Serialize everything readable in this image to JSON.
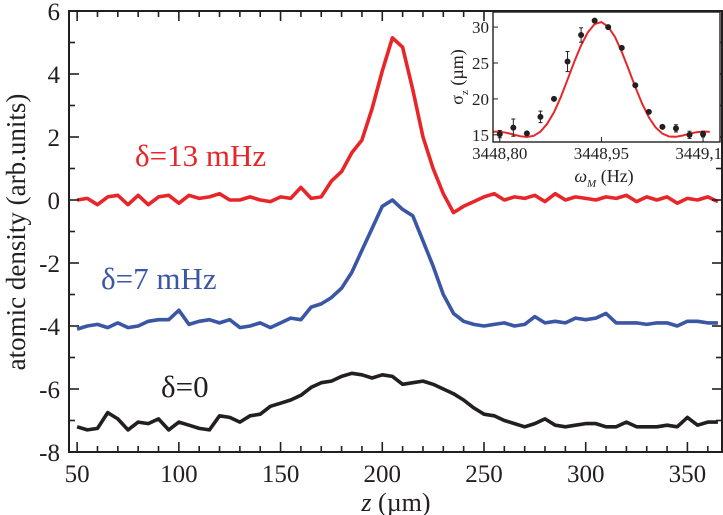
{
  "chart_data": [
    {
      "type": "line",
      "xlabel": "z (µm)",
      "xlabel_italic": "z",
      "xlabel_unit": "(µm)",
      "ylabel": "atomic density (arb.units)",
      "xlim": [
        46,
        367
      ],
      "ylim": [
        -8,
        6
      ],
      "xticks": [
        50,
        100,
        150,
        200,
        250,
        300,
        350
      ],
      "yticks": [
        -8,
        -6,
        -4,
        -2,
        0,
        2,
        4,
        6
      ],
      "grid": false,
      "x": [
        50,
        55,
        60,
        65,
        70,
        75,
        80,
        85,
        90,
        95,
        100,
        105,
        110,
        115,
        120,
        125,
        130,
        135,
        140,
        145,
        150,
        155,
        160,
        165,
        170,
        175,
        180,
        185,
        190,
        195,
        200,
        205,
        210,
        215,
        220,
        225,
        230,
        235,
        240,
        245,
        250,
        255,
        260,
        265,
        270,
        275,
        280,
        285,
        290,
        295,
        300,
        305,
        310,
        315,
        320,
        325,
        330,
        335,
        340,
        345,
        350,
        355,
        360,
        365
      ],
      "series": [
        {
          "name": "δ=13 mHz",
          "color": "#e8262a",
          "values": [
            0.0,
            0.05,
            -0.15,
            0.1,
            0.15,
            -0.15,
            0.15,
            -0.15,
            0.1,
            0.15,
            -0.1,
            0.15,
            0.05,
            0.1,
            0.2,
            0.0,
            0.0,
            0.1,
            0.0,
            -0.05,
            0.1,
            0.05,
            0.4,
            0.05,
            0.1,
            0.6,
            0.9,
            1.5,
            1.9,
            2.9,
            4.1,
            5.15,
            4.85,
            3.5,
            2.0,
            1.0,
            0.2,
            -0.4,
            -0.2,
            -0.05,
            0.1,
            0.2,
            0.0,
            0.1,
            0.05,
            0.15,
            -0.05,
            0.2,
            0.0,
            0.1,
            0.05,
            0.0,
            0.1,
            0.05,
            0.15,
            -0.05,
            0.1,
            0.0,
            0.1,
            -0.1,
            0.05,
            0.0,
            0.1,
            -0.05
          ]
        },
        {
          "name": "δ=7 mHz",
          "color": "#3a56a5",
          "values": [
            -4.1,
            -4.0,
            -3.95,
            -4.05,
            -3.9,
            -4.05,
            -4.0,
            -3.85,
            -3.8,
            -3.8,
            -3.5,
            -3.95,
            -3.85,
            -3.8,
            -3.9,
            -3.8,
            -4.05,
            -4.0,
            -3.9,
            -4.05,
            -3.9,
            -3.75,
            -3.8,
            -3.4,
            -3.3,
            -3.1,
            -2.8,
            -2.3,
            -1.6,
            -0.9,
            -0.2,
            0.0,
            -0.3,
            -0.5,
            -1.3,
            -2.1,
            -3.0,
            -3.6,
            -3.85,
            -3.95,
            -4.0,
            -3.95,
            -3.9,
            -4.0,
            -3.95,
            -3.7,
            -3.9,
            -3.85,
            -3.9,
            -3.75,
            -3.8,
            -3.75,
            -3.6,
            -3.9,
            -3.9,
            -3.9,
            -3.95,
            -3.9,
            -3.9,
            -4.0,
            -3.85,
            -3.85,
            -3.9,
            -3.9
          ]
        },
        {
          "name": "δ=0",
          "color": "#231f20",
          "values": [
            -7.2,
            -7.3,
            -7.25,
            -6.75,
            -6.95,
            -7.3,
            -7.05,
            -7.1,
            -6.95,
            -7.3,
            -7.05,
            -7.15,
            -7.25,
            -7.3,
            -6.85,
            -6.9,
            -7.05,
            -6.85,
            -6.8,
            -6.55,
            -6.45,
            -6.35,
            -6.2,
            -5.95,
            -5.8,
            -5.75,
            -5.6,
            -5.5,
            -5.55,
            -5.65,
            -5.55,
            -5.6,
            -5.85,
            -5.8,
            -5.75,
            -5.85,
            -6.0,
            -6.15,
            -6.35,
            -6.6,
            -6.8,
            -6.85,
            -7.0,
            -7.1,
            -7.2,
            -7.1,
            -6.95,
            -7.15,
            -7.2,
            -7.15,
            -7.1,
            -7.1,
            -7.2,
            -7.2,
            -7.05,
            -7.2,
            -7.2,
            -7.2,
            -7.15,
            -7.2,
            -6.9,
            -7.15,
            -7.05,
            -7.05
          ]
        }
      ]
    },
    {
      "type": "scatter",
      "title": "",
      "xlabel": "ωM (Hz)",
      "xlabel_symbol": "ω",
      "xlabel_sub": "M",
      "xlabel_unit": "(Hz)",
      "ylabel": "σz (µm)",
      "ylabel_symbol": "σ",
      "ylabel_sub": "z",
      "ylabel_unit": "(µm)",
      "xlim": [
        3448.79,
        3449.125
      ],
      "ylim": [
        14.0,
        32.1
      ],
      "xticks": [
        "3448,80",
        "3448,95",
        "3449,10"
      ],
      "xtick_values": [
        3448.8,
        3448.95,
        3449.1
      ],
      "yticks": [
        15,
        20,
        25,
        30
      ],
      "grid": false,
      "points": {
        "color": "#231f20",
        "x": [
          3448.8,
          3448.82,
          3448.84,
          3448.86,
          3448.88,
          3448.9,
          3448.92,
          3448.94,
          3448.96,
          3448.98,
          3449.0,
          3449.02,
          3449.04,
          3449.06,
          3449.08,
          3449.1
        ],
        "y": [
          15.1,
          16.0,
          15.2,
          17.5,
          20.0,
          25.2,
          28.9,
          30.9,
          30.0,
          27.1,
          21.9,
          18.2,
          16.1,
          15.9,
          15.0,
          15.1
        ],
        "err": [
          0.5,
          1.2,
          0.2,
          0.8,
          0.3,
          1.4,
          1.0,
          0.2,
          0.3,
          0.3,
          0.3,
          0.3,
          0.2,
          0.5,
          0.5,
          0.4
        ]
      },
      "fit": {
        "color": "#e8262a",
        "x": [
          3448.79,
          3448.8,
          3448.81,
          3448.82,
          3448.83,
          3448.84,
          3448.85,
          3448.86,
          3448.87,
          3448.88,
          3448.89,
          3448.9,
          3448.91,
          3448.92,
          3448.93,
          3448.94,
          3448.95,
          3448.96,
          3448.97,
          3448.98,
          3448.99,
          3449.0,
          3449.01,
          3449.02,
          3449.03,
          3449.04,
          3449.05,
          3449.06,
          3449.07,
          3449.08,
          3449.09,
          3449.1,
          3449.11
        ],
        "y": [
          15.45,
          15.43,
          15.28,
          15.05,
          14.81,
          14.7,
          14.86,
          15.44,
          16.53,
          18.14,
          20.25,
          22.67,
          25.17,
          27.46,
          29.28,
          30.41,
          30.7,
          30.06,
          28.62,
          26.57,
          24.17,
          21.66,
          19.35,
          17.43,
          16.03,
          15.15,
          14.76,
          14.72,
          14.9,
          15.15,
          15.35,
          15.45,
          15.42
        ]
      }
    }
  ]
}
